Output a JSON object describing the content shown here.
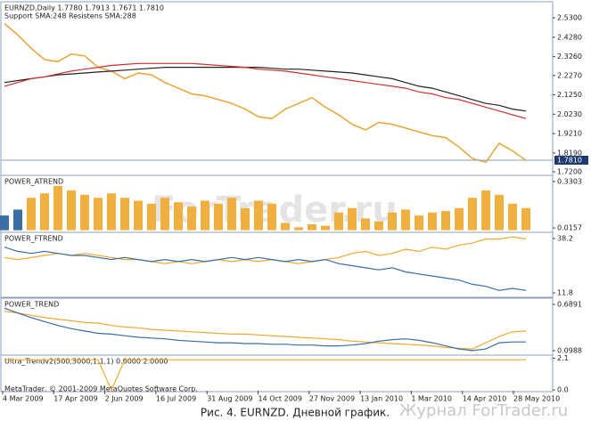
{
  "chart_data": [
    {
      "type": "line",
      "title": "EURNZD,Daily  1.7780 1.7913 1.7671 1.7810",
      "subtitle": "Support SMA:248 Resistens SMA:288",
      "ylim": [
        1.706,
        2.61
      ],
      "yticks": [
        {
          "value": 2.53,
          "label": "2.5300"
        },
        {
          "value": 2.428,
          "label": "2.4280"
        },
        {
          "value": 2.326,
          "label": "2.3260"
        },
        {
          "value": 2.227,
          "label": "2.2270"
        },
        {
          "value": 2.125,
          "label": "2.1250"
        },
        {
          "value": 2.023,
          "label": "2.0230"
        },
        {
          "value": 1.921,
          "label": "1.9210"
        },
        {
          "value": 1.819,
          "label": "1.8190"
        },
        {
          "value": 1.72,
          "label": "1.7200"
        }
      ],
      "last_price": {
        "value": 1.781,
        "label": "1.7810"
      },
      "series": [
        {
          "color": "#e8a531",
          "values": [
            2.5,
            2.44,
            2.37,
            2.31,
            2.3,
            2.34,
            2.33,
            2.27,
            2.25,
            2.21,
            2.24,
            2.23,
            2.19,
            2.16,
            2.13,
            2.12,
            2.1,
            2.08,
            2.05,
            2.01,
            2.0,
            2.05,
            2.08,
            2.11,
            2.06,
            2.02,
            1.97,
            1.94,
            1.98,
            1.97,
            1.95,
            1.93,
            1.91,
            1.9,
            1.85,
            1.79,
            1.77,
            1.87,
            1.83,
            1.78
          ]
        },
        {
          "color": "#222222",
          "values": [
            2.19,
            2.2,
            2.21,
            2.22,
            2.23,
            2.235,
            2.24,
            2.245,
            2.25,
            2.255,
            2.26,
            2.265,
            2.27,
            2.27,
            2.27,
            2.27,
            2.27,
            2.27,
            2.27,
            2.27,
            2.265,
            2.26,
            2.26,
            2.255,
            2.25,
            2.245,
            2.24,
            2.23,
            2.22,
            2.21,
            2.19,
            2.17,
            2.16,
            2.14,
            2.12,
            2.1,
            2.08,
            2.07,
            2.05,
            2.04
          ]
        },
        {
          "color": "#d03030",
          "values": [
            2.17,
            2.19,
            2.21,
            2.22,
            2.235,
            2.25,
            2.26,
            2.27,
            2.28,
            2.285,
            2.29,
            2.29,
            2.29,
            2.29,
            2.29,
            2.285,
            2.28,
            2.275,
            2.27,
            2.26,
            2.255,
            2.25,
            2.24,
            2.23,
            2.22,
            2.21,
            2.2,
            2.19,
            2.18,
            2.17,
            2.16,
            2.14,
            2.13,
            2.11,
            2.1,
            2.08,
            2.06,
            2.04,
            2.02,
            2.0
          ]
        }
      ]
    },
    {
      "type": "bar",
      "title": "POWER_ATREND",
      "ylim": [
        -0.008,
        0.366
      ],
      "yticks": [
        0.3303,
        0.0157
      ],
      "series": [
        {
          "color": "#3a6ea5",
          "values": [
            0.1,
            0.14,
            null,
            null,
            null,
            null,
            null,
            null,
            null,
            null,
            null,
            null,
            null,
            null,
            null,
            null,
            null,
            null,
            null,
            null,
            null,
            null,
            null,
            null,
            null,
            null,
            null,
            null,
            null,
            null,
            null,
            null,
            null,
            null,
            null,
            null,
            null,
            null,
            null,
            null
          ]
        },
        {
          "color": "#f0b040",
          "values": [
            null,
            null,
            0.22,
            0.25,
            0.3,
            0.27,
            0.24,
            0.22,
            0.25,
            0.22,
            0.2,
            0.18,
            0.22,
            0.19,
            0.16,
            0.2,
            0.18,
            0.22,
            0.15,
            0.2,
            0.18,
            0.05,
            0.02,
            0.04,
            0.03,
            0.12,
            0.15,
            0.08,
            0.06,
            0.12,
            0.14,
            0.1,
            0.12,
            0.13,
            0.15,
            0.22,
            0.27,
            0.24,
            0.18,
            0.15
          ]
        }
      ]
    },
    {
      "type": "line",
      "title": "POWER_FTREND",
      "ylim": [
        10.1,
        40.8
      ],
      "yticks": [
        38.2,
        11.8
      ],
      "series": [
        {
          "color": "#f0a830",
          "values": [
            29,
            28,
            29,
            30,
            31,
            30,
            31,
            30,
            29,
            28,
            28,
            27,
            26,
            27,
            26,
            27,
            28,
            27,
            28,
            27,
            28,
            27,
            26,
            27,
            28,
            29,
            31,
            32,
            30,
            31,
            33,
            32,
            34,
            33,
            35,
            36,
            38,
            38,
            39,
            38
          ]
        },
        {
          "color": "#3a6ea5",
          "values": [
            34,
            32,
            31,
            32,
            31,
            30,
            30,
            29,
            28,
            29,
            28,
            27,
            28,
            27,
            28,
            27,
            28,
            29,
            28,
            29,
            28,
            27,
            28,
            27,
            28,
            26,
            25,
            24,
            23,
            24,
            22,
            21,
            20,
            19,
            18,
            16,
            15,
            13,
            14,
            13
          ]
        }
      ]
    },
    {
      "type": "line",
      "title": "POWER_TREND",
      "ylim": [
        0.0534,
        0.7572
      ],
      "yticks": [
        0.6891,
        0.0988
      ],
      "series": [
        {
          "color": "#f0a830",
          "values": [
            0.6,
            0.58,
            0.55,
            0.52,
            0.5,
            0.48,
            0.46,
            0.45,
            0.42,
            0.4,
            0.39,
            0.37,
            0.36,
            0.35,
            0.34,
            0.33,
            0.32,
            0.31,
            0.31,
            0.3,
            0.29,
            0.28,
            0.27,
            0.26,
            0.25,
            0.24,
            0.22,
            0.21,
            0.2,
            0.19,
            0.18,
            0.17,
            0.16,
            0.14,
            0.13,
            0.12,
            0.2,
            0.28,
            0.34,
            0.35
          ]
        },
        {
          "color": "#3a6ea5",
          "values": [
            0.64,
            0.58,
            0.52,
            0.47,
            0.42,
            0.38,
            0.35,
            0.32,
            0.31,
            0.29,
            0.27,
            0.26,
            0.25,
            0.23,
            0.22,
            0.21,
            0.2,
            0.2,
            0.19,
            0.19,
            0.18,
            0.18,
            0.17,
            0.17,
            0.16,
            0.16,
            0.17,
            0.19,
            0.22,
            0.24,
            0.25,
            0.23,
            0.2,
            0.16,
            0.12,
            0.1,
            0.12,
            0.2,
            0.21,
            0.21
          ]
        }
      ]
    },
    {
      "type": "line",
      "title": "Ultra_Trendv2(500,3000,1,1,1) 0.0000 2.0000",
      "ylim": [
        -0.05,
        2.25
      ],
      "yticks": [
        2.1,
        {
          "value": 0,
          "label": "0.0"
        }
      ],
      "series": [
        {
          "color": "#f0a830",
          "values": [
            2,
            2,
            2,
            2,
            2,
            2,
            2,
            2,
            0,
            2,
            2,
            2,
            2,
            2,
            2,
            2,
            2,
            2,
            2,
            2,
            2,
            2,
            2,
            2,
            2,
            2,
            2,
            2,
            2,
            2,
            2,
            2,
            2,
            2,
            2,
            2,
            2,
            2,
            2,
            2
          ]
        }
      ],
      "xtick_labels": [
        "4 Mar 2009",
        "17 Apr 2009",
        "2 Jun 2009",
        "16 Jul 2009",
        "31 Aug 2009",
        "14 Oct 2009",
        "27 Nov 2009",
        "13 Jan 2010",
        "1 Mar 2010",
        "14 Apr 2010",
        "28 May 2010"
      ]
    }
  ],
  "copyright": "MetaTrader, © 2001-2009 MetaQuotes Software Corp.",
  "watermark": "ForTrader.ru",
  "brand": "Журнал ForTrader.ru",
  "caption": "Рис. 4. EURNZD. Дневной график."
}
